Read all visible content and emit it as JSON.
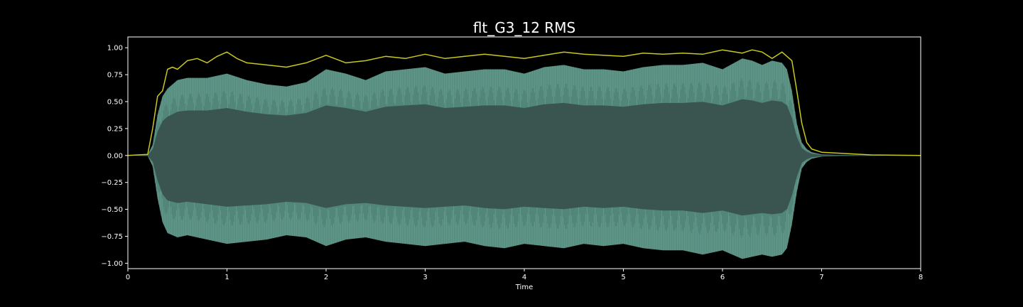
{
  "chart_data": {
    "type": "area",
    "title": "flt_G3_12 RMS",
    "xlabel": "Time",
    "ylabel": "",
    "xlim": [
      0,
      8
    ],
    "ylim": [
      -1.05,
      1.1
    ],
    "x_ticks": [
      0,
      1,
      2,
      3,
      4,
      5,
      6,
      7,
      8
    ],
    "x_tick_labels": [
      "0",
      "1",
      "2",
      "3",
      "4",
      "5",
      "6",
      "7",
      "8"
    ],
    "y_ticks": [
      1.0,
      0.75,
      0.5,
      0.25,
      0.0,
      -0.25,
      -0.5,
      -0.75,
      -1.0
    ],
    "y_tick_labels": [
      "1.00",
      "0.75",
      "0.50",
      "0.25",
      "0.00",
      "−0.25",
      "−0.50",
      "−0.75",
      "−1.00"
    ],
    "grid": false,
    "legend": "none",
    "colors": {
      "background": "#000000",
      "axes": "#ffffff",
      "waveform": "#5f9e8e",
      "waveform_core": "#3a5550",
      "rms_line": "#c8c81e"
    },
    "series": [
      {
        "kind": "waveform_envelope",
        "x": [
          0,
          0.2,
          0.25,
          0.3,
          0.35,
          0.4,
          0.5,
          0.6,
          0.8,
          1.0,
          1.2,
          1.4,
          1.6,
          1.8,
          2.0,
          2.2,
          2.4,
          2.6,
          2.8,
          3.0,
          3.2,
          3.4,
          3.6,
          3.8,
          4.0,
          4.2,
          4.4,
          4.6,
          4.8,
          5.0,
          5.2,
          5.4,
          5.6,
          5.8,
          6.0,
          6.2,
          6.3,
          6.4,
          6.5,
          6.6,
          6.65,
          6.7,
          6.75,
          6.8,
          6.85,
          6.9,
          7.0,
          7.2,
          7.5,
          8.0
        ],
        "upper": [
          0,
          0.005,
          0.1,
          0.38,
          0.55,
          0.62,
          0.7,
          0.72,
          0.72,
          0.76,
          0.7,
          0.66,
          0.64,
          0.68,
          0.8,
          0.76,
          0.7,
          0.78,
          0.8,
          0.82,
          0.76,
          0.78,
          0.8,
          0.8,
          0.76,
          0.82,
          0.84,
          0.8,
          0.8,
          0.78,
          0.82,
          0.84,
          0.84,
          0.86,
          0.8,
          0.9,
          0.88,
          0.84,
          0.88,
          0.86,
          0.8,
          0.6,
          0.3,
          0.12,
          0.06,
          0.03,
          0.01,
          0.005,
          0.002,
          0
        ],
        "lower": [
          0,
          -0.005,
          -0.1,
          -0.4,
          -0.62,
          -0.72,
          -0.76,
          -0.74,
          -0.78,
          -0.82,
          -0.8,
          -0.78,
          -0.74,
          -0.76,
          -0.84,
          -0.78,
          -0.76,
          -0.8,
          -0.82,
          -0.84,
          -0.82,
          -0.8,
          -0.84,
          -0.86,
          -0.82,
          -0.84,
          -0.86,
          -0.82,
          -0.84,
          -0.82,
          -0.86,
          -0.88,
          -0.88,
          -0.92,
          -0.88,
          -0.96,
          -0.94,
          -0.92,
          -0.94,
          -0.92,
          -0.86,
          -0.64,
          -0.34,
          -0.12,
          -0.06,
          -0.03,
          -0.01,
          -0.005,
          -0.002,
          0
        ]
      },
      {
        "kind": "rms_line",
        "x": [
          0,
          0.2,
          0.25,
          0.3,
          0.35,
          0.4,
          0.45,
          0.5,
          0.6,
          0.7,
          0.8,
          0.9,
          1.0,
          1.1,
          1.2,
          1.4,
          1.6,
          1.8,
          2.0,
          2.2,
          2.4,
          2.6,
          2.8,
          3.0,
          3.2,
          3.4,
          3.6,
          3.8,
          4.0,
          4.2,
          4.4,
          4.6,
          4.8,
          5.0,
          5.2,
          5.4,
          5.6,
          5.8,
          6.0,
          6.2,
          6.3,
          6.4,
          6.5,
          6.6,
          6.7,
          6.75,
          6.8,
          6.85,
          6.9,
          7.0,
          7.2,
          7.5,
          8.0
        ],
        "values": [
          0,
          0.01,
          0.25,
          0.55,
          0.6,
          0.8,
          0.82,
          0.8,
          0.88,
          0.9,
          0.86,
          0.92,
          0.96,
          0.9,
          0.86,
          0.84,
          0.82,
          0.86,
          0.93,
          0.86,
          0.88,
          0.92,
          0.9,
          0.94,
          0.9,
          0.92,
          0.94,
          0.92,
          0.9,
          0.93,
          0.96,
          0.94,
          0.93,
          0.92,
          0.95,
          0.94,
          0.95,
          0.94,
          0.98,
          0.95,
          0.98,
          0.96,
          0.9,
          0.96,
          0.88,
          0.6,
          0.3,
          0.12,
          0.06,
          0.03,
          0.02,
          0.005,
          0
        ]
      }
    ]
  }
}
